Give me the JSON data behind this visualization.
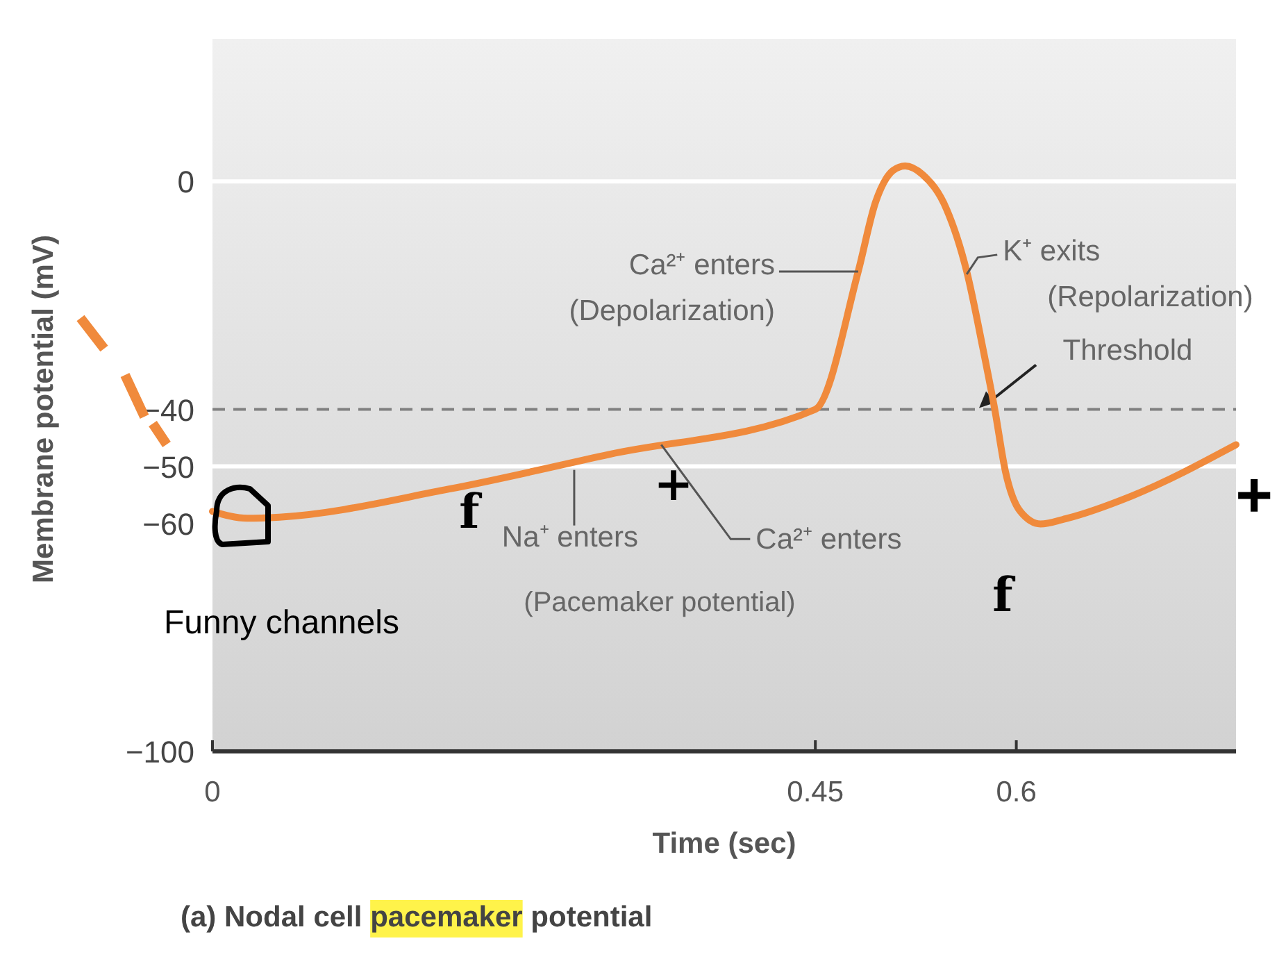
{
  "chart_data": {
    "type": "line",
    "title": "(a) Nodal cell pacemaker potential",
    "xlabel": "Time (sec)",
    "ylabel": "Membrane potential (mV)",
    "x": [
      0,
      0.026,
      0.05,
      0.176,
      0.296,
      0.45,
      0.482,
      0.495,
      0.508,
      0.517,
      0.53,
      0.548,
      0.563,
      0.575,
      0.584,
      0.592,
      0.603,
      0.618,
      0.638,
      0.686,
      0.764
    ],
    "series": [
      {
        "color": "#f08a3c",
        "values": [
          -57.9,
          -59.1,
          -58.9,
          -54,
          -47.9,
          -40,
          -15.8,
          -3.6,
          1.9,
          2.7,
          1.2,
          -4.9,
          -15.8,
          -29.2,
          -40.1,
          -51,
          -57.9,
          -60.1,
          -59.1,
          -55.2,
          -46.2
        ]
      }
    ],
    "xlim": [
      0,
      0.764
    ],
    "ylim": [
      -100,
      25
    ],
    "xticks": [
      0,
      0.45,
      0.6
    ],
    "yticks": [
      0,
      -40,
      -50,
      -60,
      -100
    ],
    "marker": "none",
    "line_style": "solid",
    "grid": false,
    "ref_lines": [
      {
        "axis": "y",
        "value": 0,
        "color": "#ffffff"
      },
      {
        "axis": "y",
        "value": -50,
        "color": "#ffffff"
      },
      {
        "axis": "y",
        "value": -40,
        "label": "Threshold",
        "color": "#808080",
        "line_style": "dashed"
      }
    ],
    "annotations": [
      {
        "text": "Ca²⁺ enters\n(Depolarization)",
        "x": 0.482,
        "y": -15.8
      },
      {
        "text": "K⁺ exits\n(Repolarization)",
        "x": 0.563,
        "y": -15.8
      },
      {
        "text": "Na⁺ enters",
        "x": 0.27,
        "y": -49.4
      },
      {
        "text": "Ca²⁺ enters",
        "x": 0.335,
        "y": -45.7
      },
      "f",
      "+",
      "f",
      "(Pacemaker potential)",
      "Funny channels",
      "+"
    ]
  }
}
